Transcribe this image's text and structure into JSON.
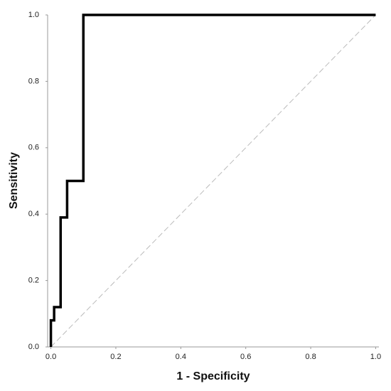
{
  "chart_data": {
    "type": "line",
    "x_label": "1 - Specificity",
    "y_label": "Sensitivity",
    "xlim": [
      -0.01,
      1.01
    ],
    "ylim": [
      0,
      1
    ],
    "xticks": [
      {
        "value": 0,
        "label": "0.0"
      },
      0.2,
      0.4,
      0.6,
      0.8,
      {
        "value": 1,
        "label": "1.0"
      }
    ],
    "yticks": [
      {
        "value": 0,
        "label": "0.0"
      },
      0.2,
      0.4,
      0.6,
      0.8,
      {
        "value": 1,
        "label": "1.0"
      }
    ],
    "grid": false,
    "series": [
      {
        "color": "#000000",
        "x": [
          0,
          0,
          0.01,
          0.01,
          0.03,
          0.03,
          0.05,
          0.05,
          0.1,
          0.1,
          1.0
        ],
        "values": [
          0,
          0.08,
          0.08,
          0.12,
          0.12,
          0.39,
          0.39,
          0.5,
          0.5,
          1.0,
          1.0
        ]
      }
    ],
    "reference_line": {
      "color": "#bbbbbb",
      "x": [
        0,
        1
      ],
      "values": [
        0,
        1
      ]
    }
  }
}
